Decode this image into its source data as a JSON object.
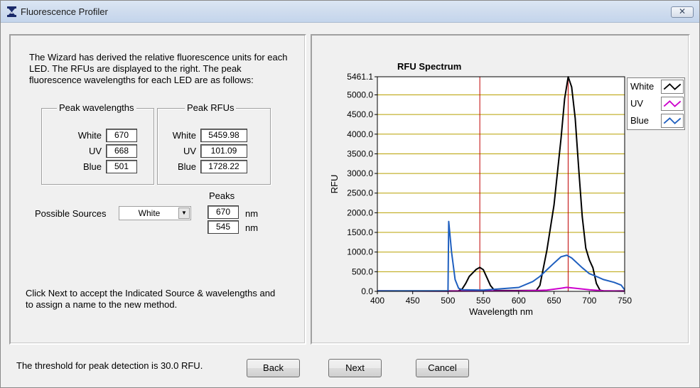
{
  "window": {
    "title": "Fluorescence Profiler",
    "close_glyph": "✕"
  },
  "left": {
    "intro_text": "The Wizard has derived the relative fluorescence units for each LED.  The RFUs are displayed to the right.  The peak fluorescence wavelengths for each LED are as follows:",
    "peak_wavelengths": {
      "title": "Peak wavelengths",
      "rows": [
        {
          "label": "White",
          "value": "670"
        },
        {
          "label": "UV",
          "value": "668"
        },
        {
          "label": "Blue",
          "value": "501"
        }
      ]
    },
    "peak_rfus": {
      "title": "Peak RFUs",
      "rows": [
        {
          "label": "White",
          "value": "5459.98"
        },
        {
          "label": "UV",
          "value": "101.09"
        },
        {
          "label": "Blue",
          "value": "1728.22"
        }
      ]
    },
    "sources": {
      "label": "Possible Sources",
      "selected": "White"
    },
    "peaks": {
      "label": "Peaks",
      "values": [
        "670",
        "545"
      ],
      "unit": "nm"
    },
    "next_text": "Click Next to accept the Indicated Source & wavelengths and to assign a name to the new method."
  },
  "footer": {
    "threshold_text": "The threshold for peak detection is 30.0 RFU.",
    "back_label": "Back",
    "next_label": "Next",
    "cancel_label": "Cancel"
  },
  "icons": {
    "app": "hourglass-icon",
    "close": "close-icon",
    "dropdown": "dropdown-arrow-icon"
  },
  "chart_data": {
    "type": "line",
    "title": "RFU Spectrum",
    "xlabel": "Wavelength nm",
    "ylabel": "RFU",
    "xlim": [
      400,
      750
    ],
    "ylim": [
      0,
      5461.1
    ],
    "x_ticks": [
      "400",
      "450",
      "500",
      "550",
      "600",
      "650",
      "700",
      "750"
    ],
    "y_ticks": [
      "0.0",
      "500.0",
      "1000.0",
      "1500.0",
      "2000.0",
      "2500.0",
      "3000.0",
      "3500.0",
      "4000.0",
      "4500.0",
      "5000.0",
      "5461.1"
    ],
    "grid": true,
    "legend_position": "right",
    "marker_lines_x": [
      545,
      670
    ],
    "series": [
      {
        "name": "White",
        "color": "#000000",
        "points": [
          [
            400,
            10
          ],
          [
            450,
            10
          ],
          [
            500,
            10
          ],
          [
            515,
            15
          ],
          [
            520,
            60
          ],
          [
            525,
            200
          ],
          [
            530,
            380
          ],
          [
            540,
            560
          ],
          [
            545,
            610
          ],
          [
            550,
            550
          ],
          [
            555,
            350
          ],
          [
            560,
            150
          ],
          [
            565,
            40
          ],
          [
            570,
            20
          ],
          [
            600,
            20
          ],
          [
            625,
            25
          ],
          [
            630,
            150
          ],
          [
            640,
            1050
          ],
          [
            650,
            2200
          ],
          [
            660,
            3900
          ],
          [
            665,
            4900
          ],
          [
            670,
            5460
          ],
          [
            675,
            5200
          ],
          [
            680,
            4400
          ],
          [
            685,
            3100
          ],
          [
            690,
            1900
          ],
          [
            695,
            1100
          ],
          [
            700,
            800
          ],
          [
            705,
            600
          ],
          [
            710,
            200
          ],
          [
            715,
            30
          ],
          [
            720,
            10
          ],
          [
            750,
            10
          ]
        ]
      },
      {
        "name": "UV",
        "color": "#cc00cc",
        "points": [
          [
            400,
            10
          ],
          [
            500,
            5
          ],
          [
            600,
            10
          ],
          [
            640,
            30
          ],
          [
            660,
            80
          ],
          [
            668,
            101
          ],
          [
            680,
            80
          ],
          [
            700,
            40
          ],
          [
            720,
            15
          ],
          [
            750,
            5
          ]
        ]
      },
      {
        "name": "Blue",
        "color": "#1f5fbf",
        "points": [
          [
            400,
            10
          ],
          [
            500,
            10
          ],
          [
            501,
            1780
          ],
          [
            505,
            1000
          ],
          [
            510,
            300
          ],
          [
            515,
            80
          ],
          [
            520,
            40
          ],
          [
            550,
            30
          ],
          [
            600,
            100
          ],
          [
            620,
            250
          ],
          [
            630,
            380
          ],
          [
            640,
            550
          ],
          [
            650,
            720
          ],
          [
            660,
            880
          ],
          [
            668,
            920
          ],
          [
            675,
            850
          ],
          [
            690,
            600
          ],
          [
            700,
            450
          ],
          [
            710,
            380
          ],
          [
            720,
            300
          ],
          [
            735,
            230
          ],
          [
            745,
            160
          ],
          [
            750,
            40
          ]
        ]
      }
    ]
  }
}
